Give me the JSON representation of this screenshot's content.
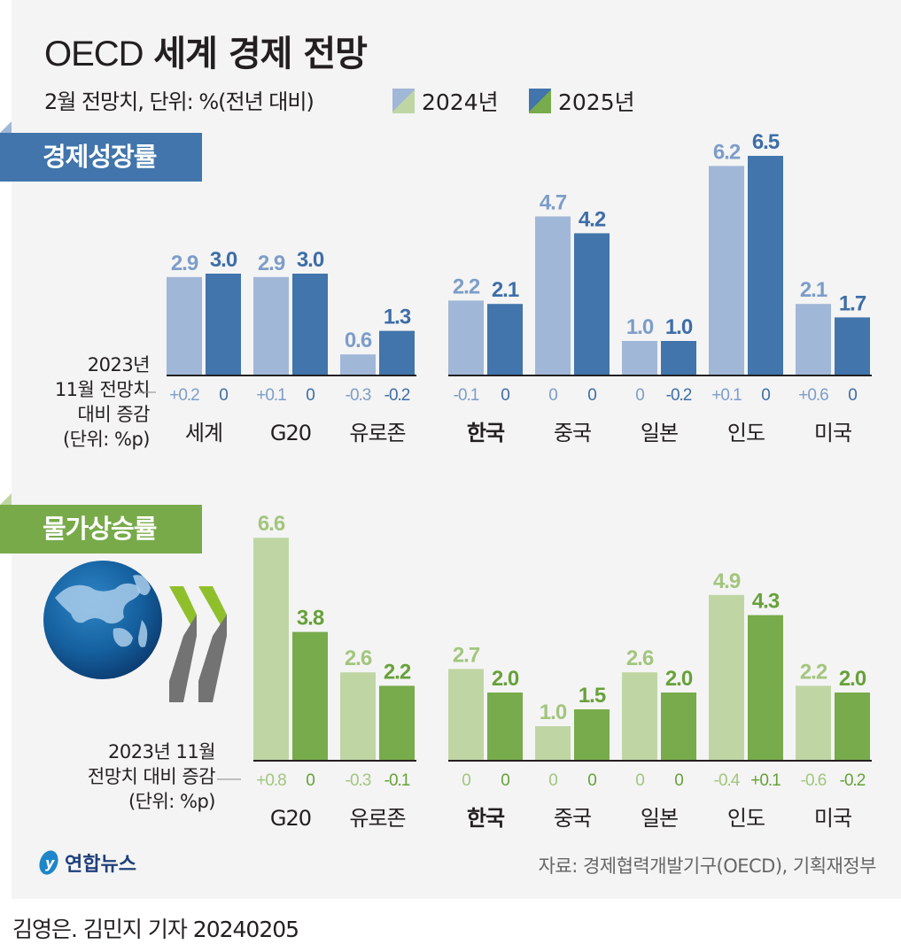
{
  "header": {
    "title_en": "OECD",
    "title_ko": "세계 경제 전망",
    "subtitle": "2월 전망치, 단위: %(전년 대비)",
    "legend": [
      {
        "label": "2024년"
      },
      {
        "label": "2025년"
      }
    ]
  },
  "colors": {
    "growth_2024": "#a1b7d7",
    "growth_2025": "#4175ab",
    "growth_label_2024": "#7d9dc9",
    "growth_label_2025": "#3d6ea7",
    "inflation_2024": "#bfd6a4",
    "inflation_2025": "#77ab4b",
    "inflation_label_2024": "#a3c57e",
    "inflation_label_2025": "#67a13a"
  },
  "growth_note": [
    "2023년",
    "11월 전망치",
    "대비 증감",
    "(단위: %p)"
  ],
  "inflation_note": [
    "2023년 11월",
    "전망치 대비 증감",
    "(단위: %p)"
  ],
  "chart_data": [
    {
      "type": "bar",
      "title": "경제성장률",
      "categories": [
        "세계",
        "G20",
        "유로존",
        "한국",
        "중국",
        "일본",
        "인도",
        "미국"
      ],
      "highlight": "한국",
      "series": [
        {
          "name": "2024년",
          "values": [
            2.9,
            2.9,
            0.6,
            2.2,
            4.7,
            1.0,
            6.2,
            2.1
          ],
          "labels": [
            "2.9",
            "2.9",
            "0.6",
            "2.2",
            "4.7",
            "1.0",
            "6.2",
            "2.1"
          ],
          "change": [
            "+0.2",
            "+0.1",
            "-0.3",
            "-0.1",
            "0",
            "0",
            "+0.1",
            "+0.6"
          ]
        },
        {
          "name": "2025년",
          "values": [
            3.0,
            3.0,
            1.3,
            2.1,
            4.2,
            1.0,
            6.5,
            1.7
          ],
          "labels": [
            "3.0",
            "3.0",
            "1.3",
            "2.1",
            "4.2",
            "1.0",
            "6.5",
            "1.7"
          ],
          "change": [
            "0",
            "0",
            "-0.2",
            "0",
            "0",
            "-0.2",
            "0",
            "0"
          ]
        }
      ],
      "unit": "%"
    },
    {
      "type": "bar",
      "title": "물가상승률",
      "categories": [
        "G20",
        "유로존",
        "한국",
        "중국",
        "일본",
        "인도",
        "미국"
      ],
      "highlight": "한국",
      "series": [
        {
          "name": "2024년",
          "values": [
            6.6,
            2.6,
            2.7,
            1.0,
            2.6,
            4.9,
            2.2
          ],
          "labels": [
            "6.6",
            "2.6",
            "2.7",
            "1.0",
            "2.6",
            "4.9",
            "2.2"
          ],
          "change": [
            "+0.8",
            "-0.3",
            "0",
            "0",
            "0",
            "-0.4",
            "-0.6"
          ]
        },
        {
          "name": "2025년",
          "values": [
            3.8,
            2.2,
            2.0,
            1.5,
            2.0,
            4.3,
            2.0
          ],
          "labels": [
            "3.8",
            "2.2",
            "2.0",
            "1.5",
            "2.0",
            "4.3",
            "2.0"
          ],
          "change": [
            "0",
            "-0.1",
            "0",
            "0",
            "0",
            "+0.1",
            "-0.2"
          ]
        }
      ],
      "unit": "%"
    }
  ],
  "footer": {
    "logo": "연합뉴스",
    "source": "자료: 경제협력개발기구(OECD), 기획재정부",
    "byline": "김영은. 김민지 기자  20240205"
  },
  "icons": {
    "globe": "globe-icon",
    "oecd_chevrons": "oecd-logo-icon",
    "logo": "yonhap-logo-icon"
  }
}
